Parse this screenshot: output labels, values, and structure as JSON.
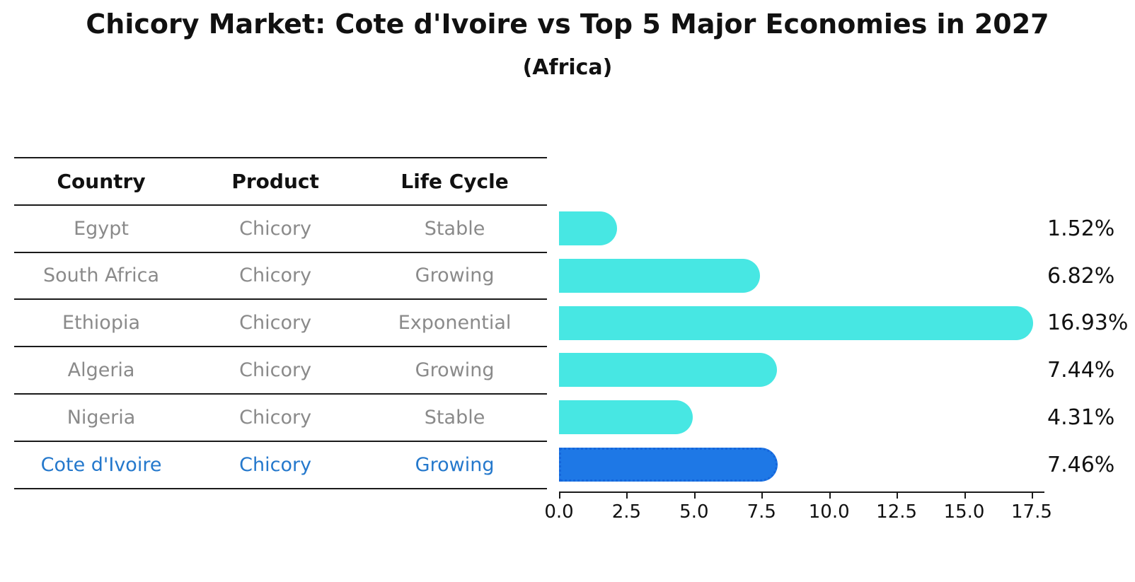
{
  "title": "Chicory Market: Cote d'Ivoire vs Top 5 Major Economies in 2027",
  "subtitle": "(Africa)",
  "table": {
    "headers": [
      "Country",
      "Product",
      "Life Cycle"
    ],
    "rows": [
      {
        "country": "Egypt",
        "product": "Chicory",
        "life_cycle": "Stable",
        "highlight": false
      },
      {
        "country": "South Africa",
        "product": "Chicory",
        "life_cycle": "Growing",
        "highlight": false
      },
      {
        "country": "Ethiopia",
        "product": "Chicory",
        "life_cycle": "Exponential",
        "highlight": false
      },
      {
        "country": "Algeria",
        "product": "Chicory",
        "life_cycle": "Growing",
        "highlight": false
      },
      {
        "country": "Nigeria",
        "product": "Chicory",
        "life_cycle": "Stable",
        "highlight": false
      },
      {
        "country": "Cote d'Ivoire",
        "product": "Chicory",
        "life_cycle": "Growing",
        "highlight": true
      }
    ]
  },
  "chart_data": {
    "type": "bar",
    "orientation": "horizontal",
    "title": "Chicory Market: Cote d'Ivoire vs Top 5 Major Economies in 2027",
    "subtitle": "(Africa)",
    "categories": [
      "Egypt",
      "South Africa",
      "Ethiopia",
      "Algeria",
      "Nigeria",
      "Cote d'Ivoire"
    ],
    "values": [
      1.52,
      6.82,
      16.93,
      7.44,
      4.31,
      7.46
    ],
    "value_labels": [
      "1.52%",
      "6.82%",
      "16.93%",
      "7.44%",
      "4.31%",
      "7.46%"
    ],
    "x_tick_labels": [
      "0.0",
      "2.5",
      "5.0",
      "7.5",
      "10.0",
      "12.5",
      "15.0",
      "17.5"
    ],
    "x_tick_values": [
      0,
      2.5,
      5,
      7.5,
      10,
      12.5,
      15,
      17.5
    ],
    "xlim": [
      0,
      17.92
    ],
    "grid": false,
    "legend": false,
    "highlight_index": 5,
    "colors": {
      "bar": "#47e7e3",
      "highlight_bar": "#1e78e6",
      "highlight_border": "#1566db",
      "text": "#111111",
      "muted_text": "#8a8a8a",
      "highlight_text": "#2478cc",
      "line": "#1a1a1a"
    }
  }
}
